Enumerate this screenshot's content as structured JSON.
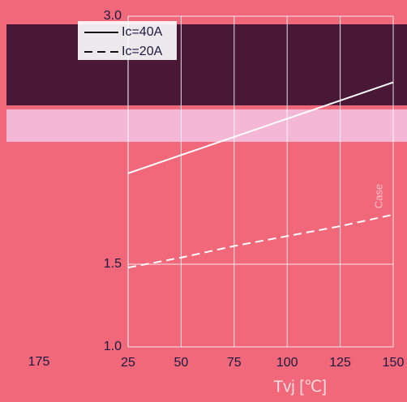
{
  "chart_data": {
    "type": "line",
    "xlabel": "Tvj [℃]",
    "x": [
      25,
      50,
      75,
      100,
      125,
      150
    ],
    "series": [
      {
        "name": "Ic=40A",
        "color": "#ffffff",
        "dash": "solid",
        "values": [
          2.05,
          2.16,
          2.27,
          2.38,
          2.49,
          2.6
        ]
      },
      {
        "name": "Ic=20A",
        "color": "#ffffff",
        "dash": "dashed",
        "values": [
          1.48,
          1.54,
          1.61,
          1.67,
          1.73,
          1.8
        ]
      }
    ],
    "xlim": [
      25,
      150
    ],
    "xticks": [
      25,
      50,
      75,
      100,
      125,
      150
    ],
    "ylim": [
      1,
      3
    ],
    "yticks": [
      {
        "value": 1,
        "label": "1.0"
      },
      1.5,
      {
        "value": 3,
        "label": "3.0"
      }
    ],
    "grid": true,
    "legend": "upper-left",
    "annotations": [
      "175",
      "Case"
    ]
  }
}
